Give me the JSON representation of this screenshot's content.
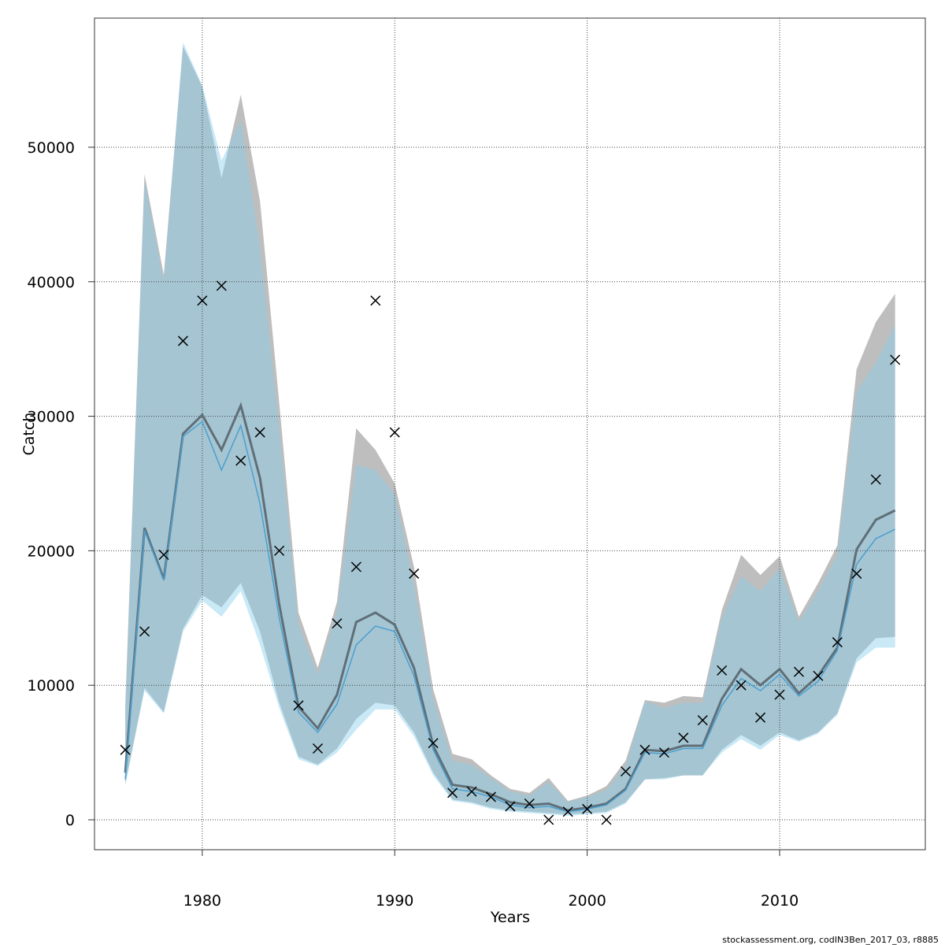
{
  "chart_data": {
    "type": "band-line",
    "x_label": "Years",
    "y_label": "Catch",
    "footer": "stockassessment.org, codIN3Ben_2017_03, r8885",
    "x": [
      1976,
      1977,
      1978,
      1979,
      1980,
      1981,
      1982,
      1983,
      1984,
      1985,
      1986,
      1987,
      1988,
      1989,
      1990,
      1991,
      1992,
      1993,
      1994,
      1995,
      1996,
      1997,
      1998,
      1999,
      2000,
      2001,
      2002,
      2003,
      2004,
      2005,
      2006,
      2007,
      2008,
      2009,
      2010,
      2011,
      2012,
      2013,
      2014,
      2015,
      2016
    ],
    "series": [
      {
        "color": "#5f6f78",
        "band_color": "#bebebe",
        "values": [
          3500,
          21700,
          17900,
          28700,
          30100,
          27500,
          30800,
          25400,
          16000,
          8400,
          6800,
          9300,
          14700,
          15400,
          14500,
          11300,
          5500,
          2600,
          2400,
          1900,
          1300,
          1100,
          1200,
          700,
          900,
          1200,
          2300,
          5200,
          5100,
          5500,
          5500,
          9000,
          11200,
          10000,
          11200,
          9400,
          10700,
          12800,
          20100,
          22300,
          23000
        ],
        "lower": [
          2700,
          9800,
          8000,
          14200,
          16700,
          15800,
          17600,
          14000,
          8700,
          4700,
          4100,
          5300,
          7500,
          8700,
          8500,
          6500,
          3500,
          1500,
          1300,
          900,
          700,
          600,
          500,
          400,
          500,
          600,
          1300,
          3000,
          3100,
          3300,
          3300,
          5200,
          6300,
          5500,
          6500,
          5900,
          6500,
          7900,
          12000,
          13500,
          13600
        ],
        "upper": [
          8500,
          48000,
          40500,
          57500,
          54500,
          47700,
          53900,
          46000,
          31000,
          15400,
          11300,
          16200,
          29100,
          27500,
          25000,
          18800,
          9700,
          4900,
          4500,
          3300,
          2300,
          2000,
          3100,
          1400,
          1800,
          2500,
          4400,
          8900,
          8700,
          9200,
          9100,
          15600,
          19700,
          18200,
          19600,
          15100,
          17600,
          20400,
          33500,
          37000,
          39100
        ]
      },
      {
        "color": "#4a9fd0",
        "band_color": "rgba(135,206,235,0.45)",
        "values": [
          3000,
          21500,
          17800,
          28500,
          29600,
          26000,
          29300,
          23500,
          15000,
          8000,
          6500,
          8600,
          13000,
          14400,
          14000,
          10700,
          5200,
          2300,
          2100,
          1700,
          1100,
          900,
          1000,
          600,
          800,
          1100,
          2200,
          5000,
          4900,
          5300,
          5300,
          8500,
          10500,
          9600,
          10800,
          9200,
          10300,
          12600,
          19000,
          20900,
          21600
        ],
        "lower": [
          2500,
          9600,
          7900,
          14000,
          16300,
          15100,
          17000,
          13000,
          8300,
          4500,
          4000,
          5000,
          6700,
          8200,
          8200,
          6200,
          3300,
          1400,
          1200,
          800,
          600,
          500,
          400,
          300,
          400,
          500,
          1200,
          3000,
          3000,
          3300,
          3300,
          5000,
          6000,
          5200,
          6300,
          5800,
          6400,
          7800,
          11700,
          12800,
          12800
        ],
        "upper": [
          8000,
          47500,
          40000,
          57800,
          54600,
          49000,
          52000,
          42500,
          29000,
          14500,
          10800,
          15500,
          26400,
          26000,
          24200,
          17500,
          9000,
          4400,
          4100,
          3100,
          2100,
          1800,
          2800,
          1300,
          1700,
          2200,
          4000,
          8800,
          8300,
          8700,
          8700,
          15000,
          18100,
          17000,
          18700,
          14700,
          17000,
          19700,
          31800,
          34000,
          36800
        ]
      }
    ],
    "points": {
      "marker": "x",
      "color": "#000000",
      "values": [
        5200,
        14000,
        19700,
        35600,
        38600,
        39700,
        26700,
        28800,
        20000,
        8500,
        5300,
        14600,
        18800,
        38600,
        28800,
        18300,
        5700,
        2000,
        2100,
        1700,
        1000,
        1200,
        0,
        600,
        800,
        0,
        3600,
        5200,
        5000,
        6100,
        7400,
        11100,
        10000,
        7600,
        9300,
        11000,
        10700,
        13200,
        18300,
        25300,
        34200
      ]
    },
    "xlim": [
      1974.4,
      2017.57
    ],
    "ylim": [
      -2225,
      59600
    ],
    "xticks": [
      1980,
      1990,
      2000,
      2010
    ],
    "yticks": [
      0,
      10000,
      20000,
      30000,
      40000,
      50000
    ],
    "grid": true
  }
}
